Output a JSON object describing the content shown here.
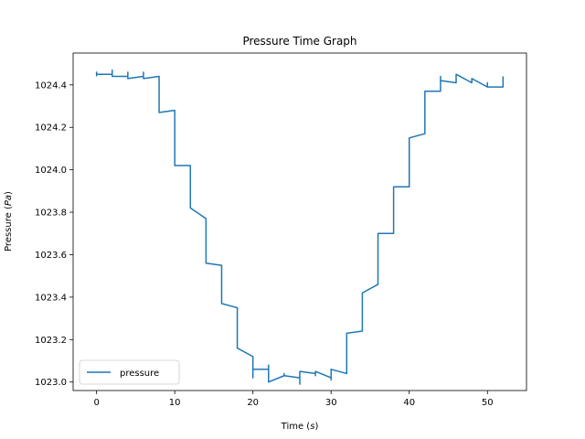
{
  "chart_data": {
    "type": "line",
    "title": "Pressure Time Graph",
    "xlabel_main": "Time (",
    "xlabel_unit": "s",
    "xlabel_close": ")",
    "ylabel_main": "Pressure (",
    "ylabel_unit": "Pa",
    "ylabel_close": ")",
    "xlim": [
      -3,
      55
    ],
    "ylim": [
      1022.96,
      1024.55
    ],
    "xticks": [
      0,
      10,
      20,
      30,
      40,
      50
    ],
    "xtick_labels": [
      "0",
      "10",
      "20",
      "30",
      "40",
      "50"
    ],
    "yticks": [
      1023.0,
      1023.2,
      1023.4,
      1023.6,
      1023.8,
      1024.0,
      1024.2,
      1024.4
    ],
    "ytick_labels": [
      "1023.0",
      "1023.2",
      "1023.4",
      "1023.6",
      "1023.8",
      "1024.0",
      "1024.2",
      "1024.4"
    ],
    "grid": false,
    "legend_position": "lower-left",
    "series": [
      {
        "name": "pressure",
        "color": "#1f77b4",
        "x": [
          0,
          0,
          0,
          2,
          2,
          2,
          4,
          4,
          4,
          6,
          6,
          6,
          8,
          8,
          10,
          10,
          12,
          12,
          14,
          14,
          16,
          16,
          18,
          18,
          20,
          20,
          20,
          22,
          22,
          22,
          24,
          24,
          24,
          26,
          26,
          26,
          28,
          28,
          28,
          30,
          30,
          30,
          32,
          32,
          34,
          34,
          36,
          36,
          38,
          38,
          40,
          40,
          42,
          42,
          44,
          44,
          44,
          46,
          46,
          48,
          48,
          50,
          50,
          50,
          52,
          52
        ],
        "y": [
          1024.44,
          1024.46,
          1024.45,
          1024.45,
          1024.47,
          1024.44,
          1024.44,
          1024.46,
          1024.43,
          1024.44,
          1024.46,
          1024.43,
          1024.44,
          1024.27,
          1024.28,
          1024.02,
          1024.02,
          1023.82,
          1023.77,
          1023.56,
          1023.55,
          1023.37,
          1023.35,
          1023.16,
          1023.12,
          1023.02,
          1023.06,
          1023.06,
          1023.08,
          1023.0,
          1023.03,
          1023.04,
          1023.03,
          1023.02,
          1022.99,
          1023.05,
          1023.04,
          1023.03,
          1023.05,
          1023.02,
          1023.01,
          1023.06,
          1023.04,
          1023.23,
          1023.24,
          1023.42,
          1023.46,
          1023.7,
          1023.7,
          1023.92,
          1023.92,
          1024.15,
          1024.17,
          1024.37,
          1024.37,
          1024.44,
          1024.42,
          1024.41,
          1024.45,
          1024.41,
          1024.43,
          1024.39,
          1024.41,
          1024.39,
          1024.39,
          1024.44
        ]
      }
    ]
  }
}
